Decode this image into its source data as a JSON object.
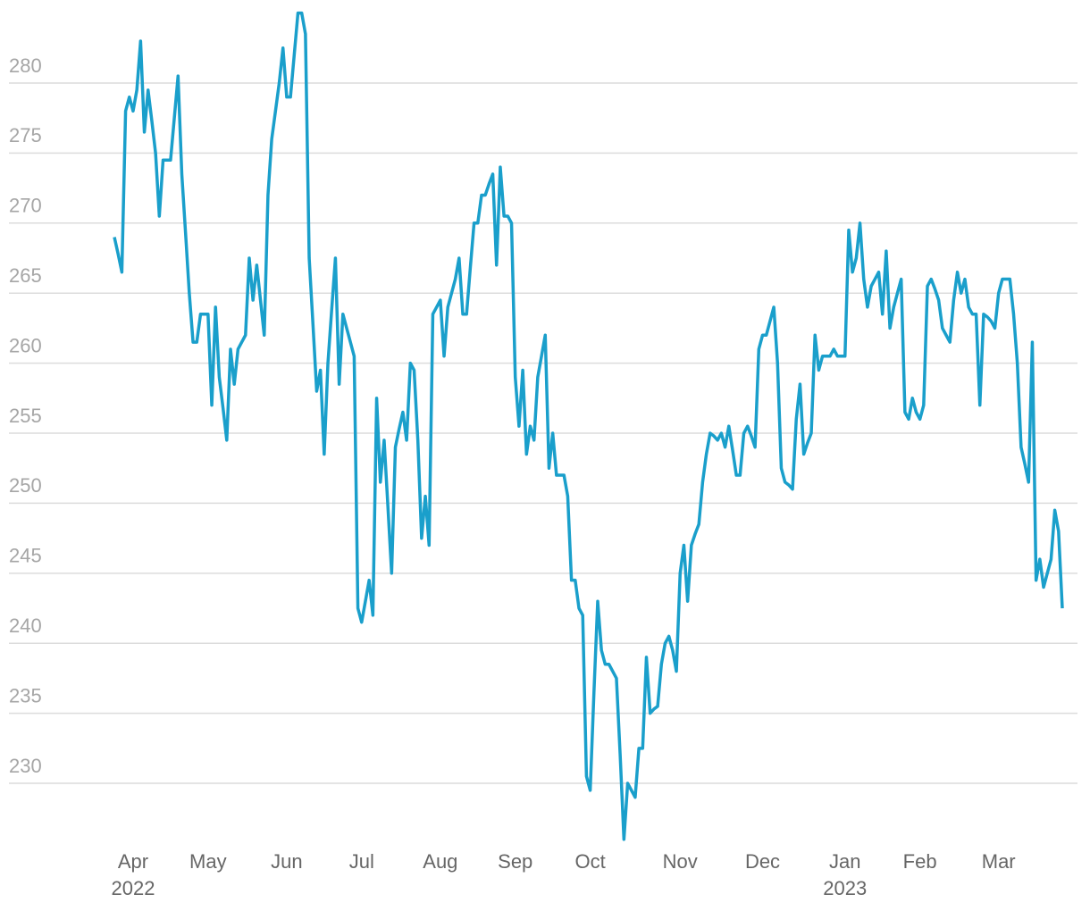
{
  "chart_data": {
    "type": "line",
    "color": "#1a9fcb",
    "grid": true,
    "ylim": [
      225.5,
      285
    ],
    "yticks": [
      230,
      235,
      240,
      245,
      250,
      255,
      260,
      265,
      270,
      275,
      280
    ],
    "categories": [
      null,
      null,
      null,
      null,
      null,
      "Apr\n2022",
      null,
      null,
      null,
      null,
      null,
      null,
      null,
      null,
      null,
      null,
      null,
      null,
      null,
      null,
      null,
      null,
      null,
      null,
      null,
      "May",
      null,
      null,
      null,
      null,
      null,
      null,
      null,
      null,
      null,
      null,
      null,
      null,
      null,
      null,
      null,
      null,
      null,
      null,
      null,
      null,
      "Jun",
      null,
      null,
      null,
      null,
      null,
      null,
      null,
      null,
      null,
      null,
      null,
      null,
      null,
      null,
      null,
      null,
      null,
      null,
      null,
      "Jul",
      null,
      null,
      null,
      null,
      null,
      null,
      null,
      null,
      null,
      null,
      null,
      null,
      null,
      null,
      null,
      null,
      null,
      null,
      null,
      null,
      "Aug",
      null,
      null,
      null,
      null,
      null,
      null,
      null,
      null,
      null,
      null,
      null,
      null,
      null,
      null,
      null,
      null,
      null,
      null,
      null,
      "Sep",
      null,
      null,
      null,
      null,
      null,
      null,
      null,
      null,
      null,
      null,
      null,
      null,
      null,
      null,
      null,
      null,
      null,
      null,
      null,
      "Oct",
      null,
      null,
      null,
      null,
      null,
      null,
      null,
      null,
      null,
      null,
      null,
      null,
      null,
      null,
      null,
      null,
      null,
      null,
      null,
      null,
      null,
      null,
      null,
      "Nov",
      null,
      null,
      null,
      null,
      null,
      null,
      null,
      null,
      null,
      null,
      null,
      null,
      null,
      null,
      null,
      null,
      null,
      null,
      null,
      null,
      null,
      "Dec",
      null,
      null,
      null,
      null,
      null,
      null,
      null,
      null,
      null,
      null,
      null,
      null,
      null,
      null,
      null,
      null,
      null,
      null,
      null,
      null,
      null,
      "Jan\n2023",
      null,
      null,
      null,
      null,
      null,
      null,
      null,
      null,
      null,
      null,
      null,
      null,
      null,
      null,
      null,
      null,
      null,
      null,
      null,
      "Feb",
      null,
      null,
      null,
      null,
      null,
      null,
      null,
      null,
      null,
      null,
      null,
      null,
      null,
      null,
      null,
      null,
      null,
      null,
      null,
      null,
      "Mar",
      null,
      null,
      null,
      null,
      null,
      null,
      null,
      null,
      null,
      null,
      null,
      null,
      null,
      null,
      null,
      null,
      null
    ],
    "values": [
      269,
      267.8,
      266.5,
      278,
      279,
      278,
      279.5,
      283,
      276.5,
      279.5,
      277.3,
      275,
      270.5,
      274.5,
      274.5,
      274.5,
      277.5,
      280.5,
      273.5,
      269.3,
      265,
      261.5,
      261.5,
      263.5,
      263.5,
      263.5,
      257,
      264,
      259,
      256.8,
      254.5,
      261,
      258.5,
      261,
      261.5,
      262,
      267.5,
      264.5,
      267,
      264.5,
      262,
      272,
      276,
      278,
      280,
      282.5,
      279,
      279,
      282,
      285,
      285,
      283.5,
      267.5,
      262.8,
      258,
      259.5,
      253.5,
      260,
      263.8,
      267.5,
      258.5,
      263.5,
      262.5,
      261.5,
      260.5,
      242.5,
      241.5,
      243,
      244.5,
      242,
      257.5,
      251.5,
      254.5,
      249.8,
      245,
      254,
      255.3,
      256.5,
      254.5,
      260,
      259.5,
      254.5,
      247.5,
      250.5,
      247,
      263.5,
      264,
      264.5,
      260.5,
      264,
      265,
      266,
      267.5,
      263.5,
      263.5,
      266.8,
      270,
      270,
      272,
      272,
      272.8,
      273.5,
      267,
      274,
      270.5,
      270.5,
      270,
      259,
      255.5,
      259.5,
      253.5,
      255.5,
      254.5,
      259,
      260.5,
      262,
      252.5,
      255,
      252,
      252,
      252,
      250.5,
      244.5,
      244.5,
      242.5,
      242,
      230.5,
      229.5,
      236.5,
      243,
      239.5,
      238.5,
      238.5,
      238,
      237.5,
      232,
      226,
      230,
      229.5,
      229,
      232.5,
      232.5,
      239,
      235,
      235.3,
      235.5,
      238.5,
      240,
      240.5,
      239.5,
      238,
      245,
      247,
      243,
      247,
      247.8,
      248.5,
      251.5,
      253.5,
      255,
      254.8,
      254.5,
      255,
      254,
      255.5,
      253.8,
      252,
      252,
      255,
      255.5,
      254.8,
      254,
      261,
      262,
      262,
      263,
      264,
      260,
      252.5,
      251.5,
      251.3,
      251,
      256,
      258.5,
      253.5,
      254.3,
      255,
      262,
      259.5,
      260.5,
      260.5,
      260.5,
      261,
      260.5,
      260.5,
      260.5,
      269.5,
      266.5,
      267.5,
      270,
      266,
      264,
      265.5,
      266,
      266.5,
      263.5,
      268,
      262.5,
      264,
      265,
      266,
      256.5,
      256,
      257.5,
      256.5,
      256,
      257,
      265.5,
      266,
      265.3,
      264.5,
      262.5,
      262,
      261.5,
      264.5,
      266.5,
      265,
      266,
      264,
      263.5,
      263.5,
      257,
      263.5,
      263.3,
      263,
      262.5,
      265,
      266,
      266,
      266,
      263.5,
      260,
      254,
      252.8,
      251.5,
      261.5,
      244.5,
      246,
      244,
      245,
      246,
      249.5,
      248,
      242.5
    ]
  }
}
